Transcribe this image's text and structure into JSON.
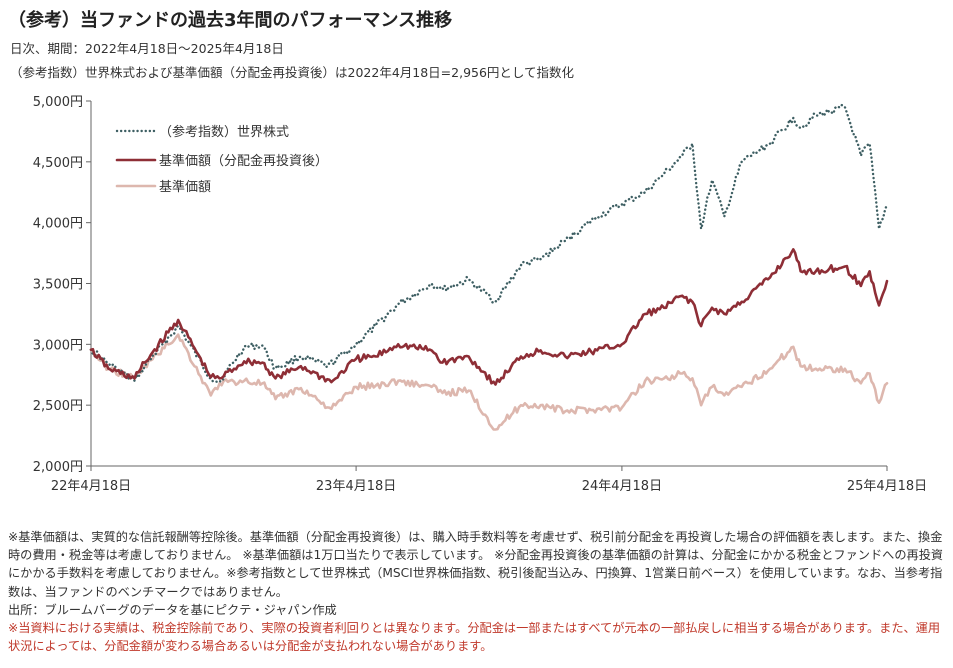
{
  "title": "（参考）当ファンドの過去3年間のパフォーマンス推移",
  "subtitle1": "日次、期間：2022年4月18日～2025年4月18日",
  "subtitle2": "（参考指数）世界株式および基準価額（分配金再投資後）は2022年4月18日=2,956円として指数化",
  "colors": {
    "index": "#3e5f63",
    "reinvested": "#8e2e36",
    "nav": "#ddb7ae",
    "axis": "#666666"
  },
  "chart_data": {
    "type": "line",
    "ylim": [
      2000,
      5000
    ],
    "yticks": [
      2000,
      2500,
      3000,
      3500,
      4000,
      4500,
      5000
    ],
    "ytick_labels": [
      "2,000円",
      "2,500円",
      "3,000円",
      "3,500円",
      "4,000円",
      "4,500円",
      "5,000円"
    ],
    "x_range": [
      "2022-04-18",
      "2025-04-18"
    ],
    "x_ticks": [
      "2022-04-18",
      "2023-04-18",
      "2024-04-18",
      "2025-04-18"
    ],
    "xtick_labels": [
      "22年4月18日",
      "23年4月18日",
      "24年4月18日",
      "25年4月18日"
    ],
    "legend_position": "top-left",
    "grid": false,
    "series": [
      {
        "name": "（参考指数）世界株式",
        "style": "dotted",
        "points": [
          [
            "2022-04-18",
            2956
          ],
          [
            "2022-05-10",
            2850
          ],
          [
            "2022-06-17",
            2700
          ],
          [
            "2022-07-01",
            2820
          ],
          [
            "2022-08-16",
            3150
          ],
          [
            "2022-09-30",
            2720
          ],
          [
            "2022-10-12",
            2690
          ],
          [
            "2022-11-15",
            2980
          ],
          [
            "2022-12-10",
            2990
          ],
          [
            "2022-12-28",
            2800
          ],
          [
            "2023-02-01",
            2900
          ],
          [
            "2023-03-10",
            2820
          ],
          [
            "2023-04-18",
            3000
          ],
          [
            "2023-05-15",
            3150
          ],
          [
            "2023-06-15",
            3330
          ],
          [
            "2023-07-31",
            3500
          ],
          [
            "2023-08-15",
            3450
          ],
          [
            "2023-09-20",
            3530
          ],
          [
            "2023-10-27",
            3350
          ],
          [
            "2023-12-01",
            3650
          ],
          [
            "2023-12-28",
            3700
          ],
          [
            "2024-01-31",
            3850
          ],
          [
            "2024-03-15",
            4050
          ],
          [
            "2024-04-18",
            4150
          ],
          [
            "2024-05-20",
            4250
          ],
          [
            "2024-06-15",
            4400
          ],
          [
            "2024-07-10",
            4550
          ],
          [
            "2024-07-24",
            4650
          ],
          [
            "2024-08-05",
            3950
          ],
          [
            "2024-08-20",
            4350
          ],
          [
            "2024-09-06",
            4050
          ],
          [
            "2024-09-30",
            4500
          ],
          [
            "2024-11-08",
            4650
          ],
          [
            "2024-12-10",
            4860
          ],
          [
            "2024-12-20",
            4780
          ],
          [
            "2025-01-10",
            4880
          ],
          [
            "2025-02-19",
            4950
          ],
          [
            "2025-03-13",
            4550
          ],
          [
            "2025-03-25",
            4650
          ],
          [
            "2025-04-07",
            3950
          ],
          [
            "2025-04-18",
            4150
          ]
        ]
      },
      {
        "name": "基準価額（分配金再投資後）",
        "style": "solid",
        "points": [
          [
            "2022-04-18",
            2956
          ],
          [
            "2022-05-12",
            2800
          ],
          [
            "2022-06-17",
            2720
          ],
          [
            "2022-07-01",
            2850
          ],
          [
            "2022-08-16",
            3200
          ],
          [
            "2022-09-30",
            2730
          ],
          [
            "2022-10-12",
            2720
          ],
          [
            "2022-11-15",
            2860
          ],
          [
            "2022-12-10",
            2850
          ],
          [
            "2022-12-28",
            2720
          ],
          [
            "2023-02-01",
            2820
          ],
          [
            "2023-03-15",
            2690
          ],
          [
            "2023-04-18",
            2880
          ],
          [
            "2023-05-15",
            2900
          ],
          [
            "2023-06-15",
            3000
          ],
          [
            "2023-07-31",
            2950
          ],
          [
            "2023-08-15",
            2850
          ],
          [
            "2023-09-20",
            2900
          ],
          [
            "2023-10-27",
            2670
          ],
          [
            "2023-12-01",
            2900
          ],
          [
            "2023-12-28",
            2950
          ],
          [
            "2024-01-31",
            2900
          ],
          [
            "2024-03-15",
            2950
          ],
          [
            "2024-04-18",
            3000
          ],
          [
            "2024-05-20",
            3250
          ],
          [
            "2024-06-15",
            3300
          ],
          [
            "2024-07-10",
            3400
          ],
          [
            "2024-07-24",
            3350
          ],
          [
            "2024-08-05",
            3150
          ],
          [
            "2024-08-20",
            3300
          ],
          [
            "2024-09-06",
            3250
          ],
          [
            "2024-09-30",
            3350
          ],
          [
            "2024-11-08",
            3550
          ],
          [
            "2024-12-10",
            3780
          ],
          [
            "2024-12-20",
            3600
          ],
          [
            "2025-01-10",
            3600
          ],
          [
            "2025-02-19",
            3640
          ],
          [
            "2025-03-13",
            3480
          ],
          [
            "2025-03-25",
            3600
          ],
          [
            "2025-04-07",
            3320
          ],
          [
            "2025-04-18",
            3520
          ]
        ]
      },
      {
        "name": "基準価額",
        "style": "solid",
        "points": [
          [
            "2022-04-18",
            2956
          ],
          [
            "2022-05-12",
            2800
          ],
          [
            "2022-06-17",
            2720
          ],
          [
            "2022-07-01",
            2820
          ],
          [
            "2022-08-16",
            3080
          ],
          [
            "2022-09-30",
            2580
          ],
          [
            "2022-10-12",
            2680
          ],
          [
            "2022-11-15",
            2700
          ],
          [
            "2022-12-10",
            2680
          ],
          [
            "2022-12-28",
            2550
          ],
          [
            "2023-02-01",
            2640
          ],
          [
            "2023-03-15",
            2470
          ],
          [
            "2023-04-18",
            2650
          ],
          [
            "2023-05-15",
            2660
          ],
          [
            "2023-06-15",
            2700
          ],
          [
            "2023-07-31",
            2650
          ],
          [
            "2023-08-15",
            2600
          ],
          [
            "2023-09-20",
            2620
          ],
          [
            "2023-10-27",
            2300
          ],
          [
            "2023-12-01",
            2500
          ],
          [
            "2023-12-28",
            2500
          ],
          [
            "2024-01-31",
            2450
          ],
          [
            "2024-03-15",
            2470
          ],
          [
            "2024-04-18",
            2480
          ],
          [
            "2024-05-20",
            2700
          ],
          [
            "2024-06-15",
            2720
          ],
          [
            "2024-07-10",
            2760
          ],
          [
            "2024-07-24",
            2720
          ],
          [
            "2024-08-05",
            2500
          ],
          [
            "2024-08-20",
            2650
          ],
          [
            "2024-09-06",
            2580
          ],
          [
            "2024-09-30",
            2650
          ],
          [
            "2024-11-08",
            2800
          ],
          [
            "2024-12-10",
            2980
          ],
          [
            "2024-12-20",
            2820
          ],
          [
            "2025-01-10",
            2800
          ],
          [
            "2025-02-19",
            2800
          ],
          [
            "2025-03-13",
            2680
          ],
          [
            "2025-03-25",
            2760
          ],
          [
            "2025-04-07",
            2520
          ],
          [
            "2025-04-18",
            2680
          ]
        ]
      }
    ]
  },
  "notes": [
    "※基準価額は、実質的な信託報酬等控除後。基準価額（分配金再投資後）は、購入時手数料等を考慮せず、税引前分配金を再投資した場合の評価額を表します。また、換金時の費用・税金等は考慮しておりません。 ※基準価額は1万口当たりで表示しています。 ※分配金再投資後の基準価額の計算は、分配金にかかる税金とファンドへの再投資にかかる手数料を考慮しておりません。※参考指数として世界株式（MSCI世界株価指数、税引後配当込み、円換算、1営業日前ベース）を使用しています。なお、当参考指数は、当ファンドのベンチマークではありません。",
    "出所：ブルームバーグのデータを基にピクテ・ジャパン作成"
  ],
  "disclaimer": "※当資料における実績は、税金控除前であり、実際の投資者利回りとは異なります。分配金は一部またはすべてが元本の一部払戻しに相当する場合があります。また、運用状況によっては、分配金額が変わる場合あるいは分配金が支払われない場合があります。"
}
